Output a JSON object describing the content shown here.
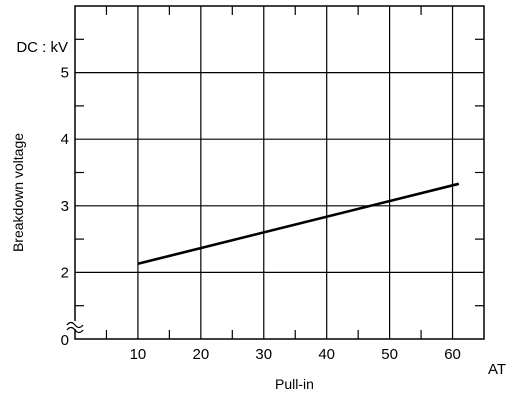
{
  "chart_data": {
    "type": "line",
    "xlabel": "Pull-in",
    "ylabel": "Breakdown voltage",
    "x_unit": "AT",
    "y_unit": "DC : kV",
    "xlim": [
      0,
      65
    ],
    "ylim": [
      1,
      6
    ],
    "x_ticks": [
      10,
      20,
      30,
      40,
      50,
      60
    ],
    "x_tick_labels": [
      "10",
      "20",
      "30",
      "40",
      "50",
      "60"
    ],
    "y_ticks": [
      2,
      3,
      4,
      5
    ],
    "y_tick_labels": [
      "2",
      "3",
      "4",
      "5"
    ],
    "y_origin_label": "0",
    "axis_break": "y",
    "grid": true,
    "series": [
      {
        "x": [
          10,
          61
        ],
        "y": [
          2.13,
          3.33
        ],
        "color": "#000000"
      }
    ]
  }
}
